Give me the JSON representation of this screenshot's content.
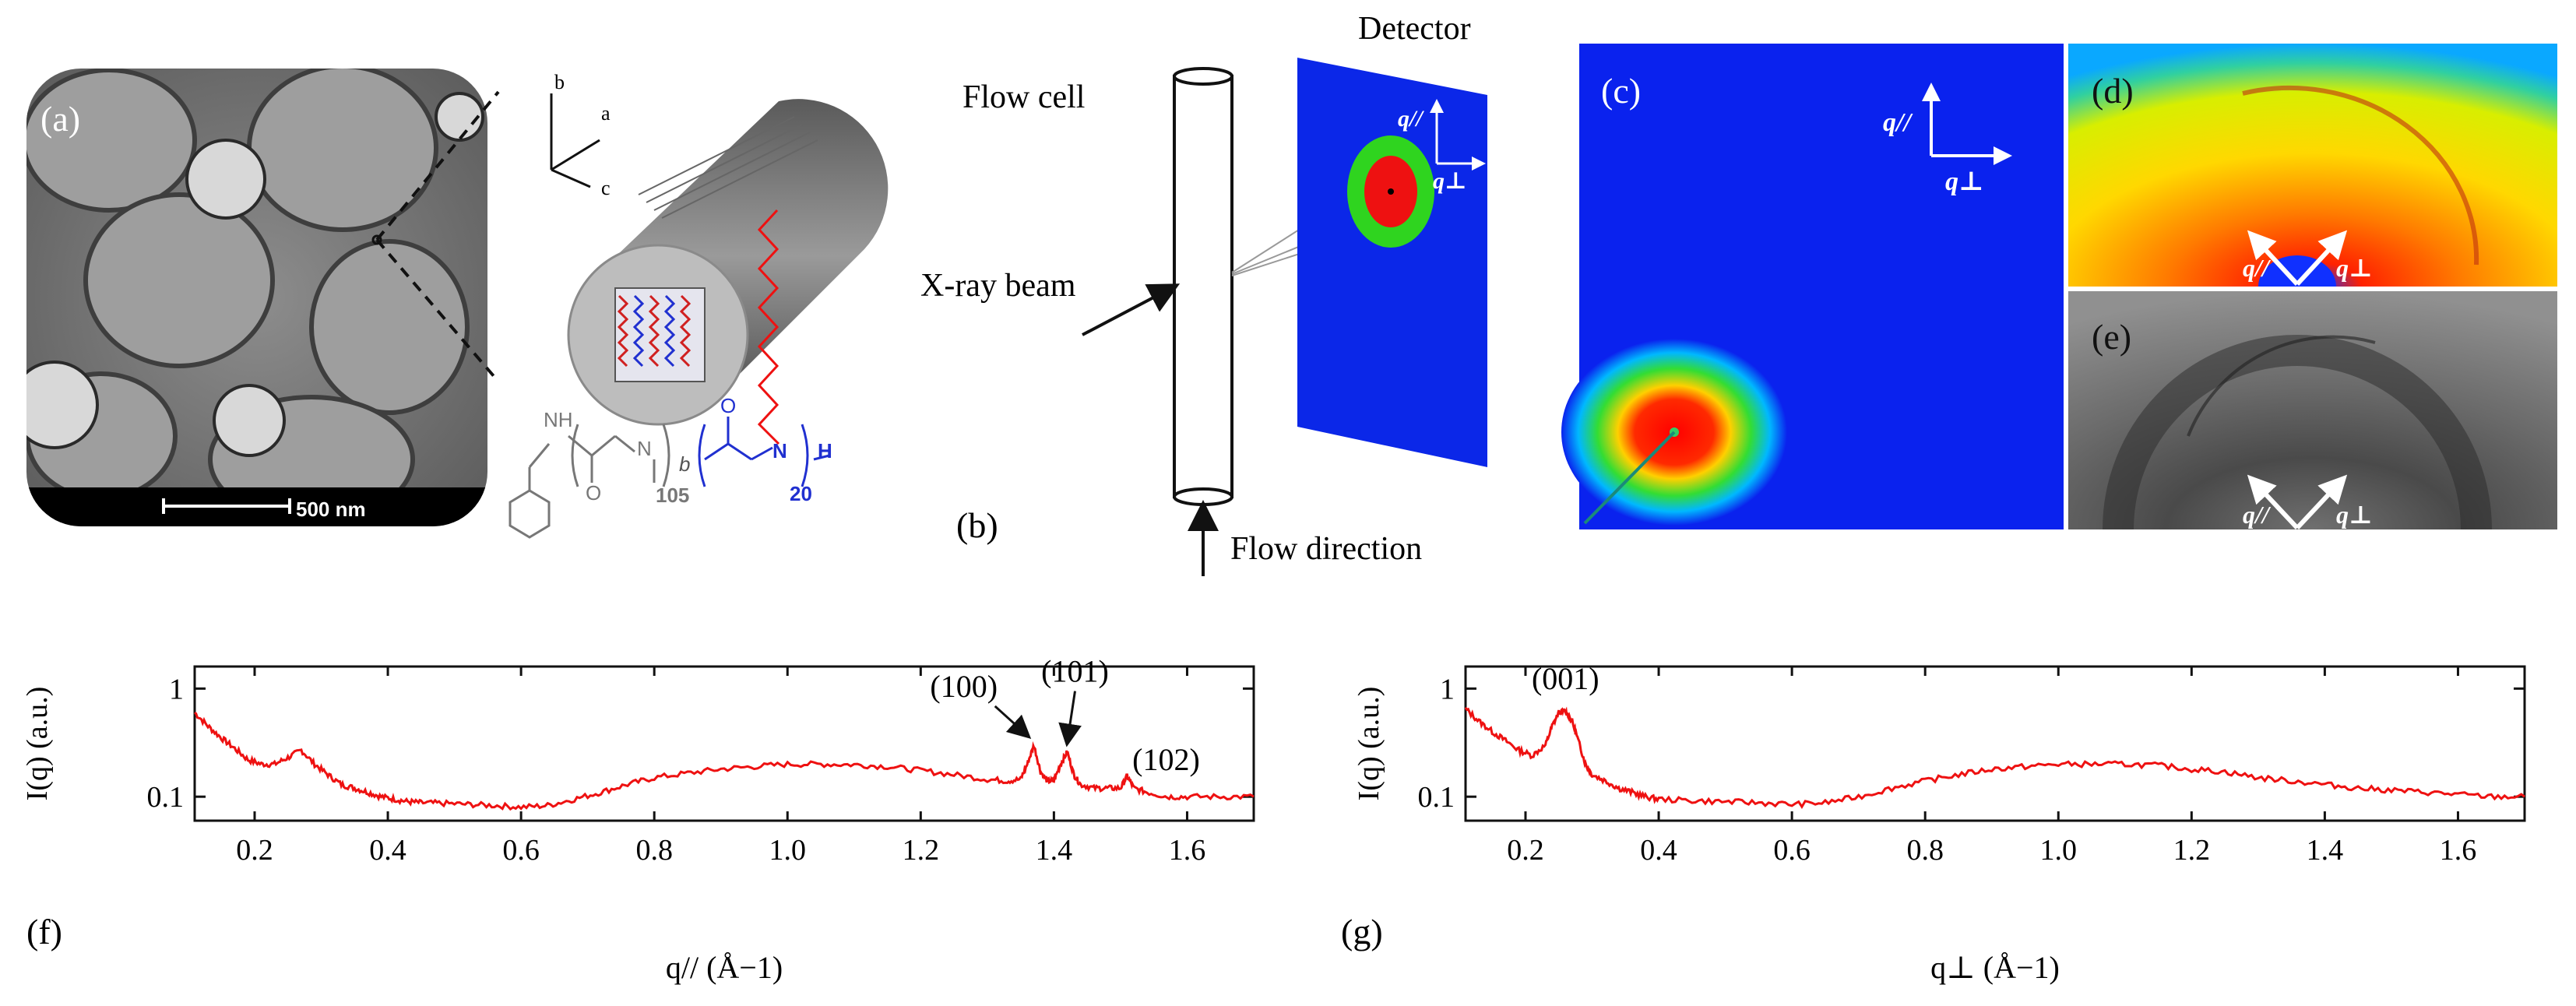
{
  "labels": {
    "a": "(a)",
    "b": "(b)",
    "c": "(c)",
    "d": "(d)",
    "e": "(e)",
    "f": "(f)",
    "g": "(g)"
  },
  "panel_a": {
    "scale_bar": "500 nm",
    "axes": {
      "a": "a",
      "b": "b",
      "c": "c"
    },
    "chemistry": {
      "nh": "NH",
      "n1": "N",
      "block": "b",
      "n_peg": "105",
      "n2": "N",
      "h": "H",
      "n_block2": "20",
      "o": "O"
    }
  },
  "panel_b": {
    "flow_cell": "Flow cell",
    "detector": "Detector",
    "xray": "X-ray beam",
    "flow": "Flow direction",
    "q_par": "q//",
    "q_perp": "q⊥"
  },
  "panel_c": {
    "q_par": "q//",
    "q_perp": "q⊥"
  },
  "panel_d": {
    "q_par": "q//",
    "q_perp": "q⊥"
  },
  "panel_e": {
    "q_par": "q//",
    "q_perp": "q⊥"
  },
  "colors": {
    "line": "#ee1111",
    "detector_blue": "#0b27e8",
    "ring_green": "#2fd41f",
    "center_red": "#ee1111"
  },
  "chart_data": [
    {
      "type": "line",
      "panel": "f",
      "ylabel": "I(q) (a.u.)",
      "xlabel": "q// (Å−1)",
      "xlim": [
        0.11,
        1.7
      ],
      "ylim": [
        0.06,
        1.6
      ],
      "yscale": "log",
      "xticks": [
        0.2,
        0.4,
        0.6,
        0.8,
        1.0,
        1.2,
        1.4,
        1.6
      ],
      "xtick_labels": [
        "0.2",
        "0.4",
        "0.6",
        "0.8",
        "1.0",
        "1.2",
        "1.4",
        "1.6"
      ],
      "yticks": [
        0.1,
        1
      ],
      "ytick_labels": [
        "0.1",
        "1"
      ],
      "x": [
        0.11,
        0.13,
        0.15,
        0.17,
        0.19,
        0.21,
        0.23,
        0.25,
        0.27,
        0.29,
        0.31,
        0.33,
        0.35,
        0.37,
        0.39,
        0.41,
        0.43,
        0.45,
        0.48,
        0.52,
        0.56,
        0.6,
        0.64,
        0.68,
        0.72,
        0.76,
        0.8,
        0.85,
        0.9,
        0.95,
        1.0,
        1.05,
        1.1,
        1.15,
        1.2,
        1.25,
        1.3,
        1.33,
        1.35,
        1.36,
        1.37,
        1.38,
        1.39,
        1.4,
        1.41,
        1.42,
        1.43,
        1.44,
        1.46,
        1.48,
        1.5,
        1.51,
        1.52,
        1.54,
        1.57,
        1.6,
        1.65,
        1.7
      ],
      "values": [
        0.6,
        0.45,
        0.35,
        0.28,
        0.22,
        0.2,
        0.2,
        0.23,
        0.27,
        0.2,
        0.16,
        0.13,
        0.12,
        0.11,
        0.1,
        0.095,
        0.09,
        0.088,
        0.087,
        0.085,
        0.083,
        0.08,
        0.083,
        0.095,
        0.11,
        0.13,
        0.15,
        0.165,
        0.18,
        0.19,
        0.2,
        0.2,
        0.198,
        0.19,
        0.175,
        0.16,
        0.145,
        0.14,
        0.145,
        0.2,
        0.3,
        0.17,
        0.14,
        0.14,
        0.2,
        0.26,
        0.16,
        0.13,
        0.12,
        0.12,
        0.12,
        0.155,
        0.12,
        0.11,
        0.1,
        0.1,
        0.1,
        0.1
      ],
      "annotations": [
        {
          "text": "(100)",
          "x": 1.37,
          "y": 0.3
        },
        {
          "text": "(101)",
          "x": 1.42,
          "y": 0.26
        },
        {
          "text": "(102)",
          "x": 1.51,
          "y": 0.155
        }
      ]
    },
    {
      "type": "line",
      "panel": "g",
      "ylabel": "I(q) (a.u.)",
      "xlabel": "q⊥ (Å−1)",
      "xlim": [
        0.11,
        1.7
      ],
      "ylim": [
        0.06,
        1.6
      ],
      "yscale": "log",
      "xticks": [
        0.2,
        0.4,
        0.6,
        0.8,
        1.0,
        1.2,
        1.4,
        1.6
      ],
      "xtick_labels": [
        "0.2",
        "0.4",
        "0.6",
        "0.8",
        "1.0",
        "1.2",
        "1.4",
        "1.6"
      ],
      "yticks": [
        0.1,
        1
      ],
      "ytick_labels": [
        "0.1",
        "1"
      ],
      "x": [
        0.11,
        0.13,
        0.15,
        0.17,
        0.19,
        0.21,
        0.23,
        0.24,
        0.25,
        0.26,
        0.27,
        0.28,
        0.29,
        0.3,
        0.32,
        0.34,
        0.36,
        0.38,
        0.4,
        0.45,
        0.5,
        0.55,
        0.6,
        0.65,
        0.7,
        0.75,
        0.8,
        0.85,
        0.9,
        0.95,
        1.0,
        1.05,
        1.1,
        1.15,
        1.2,
        1.25,
        1.3,
        1.35,
        1.4,
        1.45,
        1.5,
        1.55,
        1.6,
        1.65,
        1.7
      ],
      "values": [
        0.65,
        0.5,
        0.4,
        0.33,
        0.27,
        0.24,
        0.3,
        0.45,
        0.6,
        0.62,
        0.5,
        0.32,
        0.2,
        0.16,
        0.14,
        0.12,
        0.11,
        0.1,
        0.095,
        0.092,
        0.09,
        0.088,
        0.085,
        0.088,
        0.1,
        0.12,
        0.14,
        0.16,
        0.18,
        0.19,
        0.2,
        0.2,
        0.2,
        0.195,
        0.18,
        0.17,
        0.15,
        0.14,
        0.13,
        0.12,
        0.115,
        0.11,
        0.105,
        0.1,
        0.1
      ],
      "annotations": [
        {
          "text": "(001)",
          "x": 0.26,
          "y": 0.62
        }
      ]
    }
  ]
}
